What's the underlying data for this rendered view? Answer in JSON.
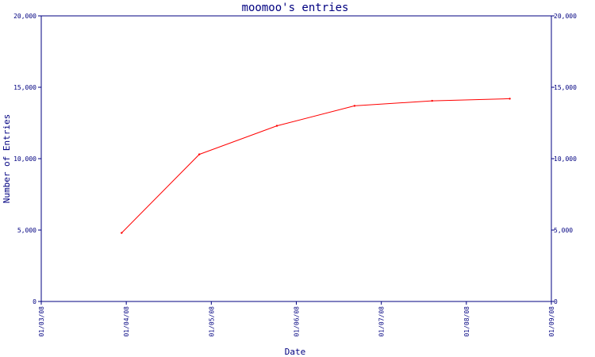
{
  "colors": {
    "axis": "#000080",
    "text": "#000080",
    "series": "#ff0000",
    "background": "#ffffff"
  },
  "chart_data": {
    "type": "line",
    "title": "moomoo's entries",
    "xlabel": "Date",
    "ylabel": "Number of Entries",
    "x_ticks": [
      "01/03/08",
      "01/04/08",
      "01/05/08",
      "01/06/08",
      "01/07/08",
      "01/08/08",
      "01/09/08"
    ],
    "y_ticks": [
      "0",
      "5,000",
      "10,000",
      "15,000",
      "20,000"
    ],
    "ylim": [
      0,
      20000
    ],
    "xlim": [
      "2008-03-01",
      "2008-09-01"
    ],
    "grid": false,
    "right_axis_mirrored": true,
    "series": [
      {
        "x": [
          "2008-03-30",
          "2008-04-27",
          "2008-05-25",
          "2008-06-22",
          "2008-07-20",
          "2008-08-17"
        ],
        "y": [
          4800,
          10300,
          12300,
          13700,
          14050,
          14200
        ]
      }
    ]
  }
}
